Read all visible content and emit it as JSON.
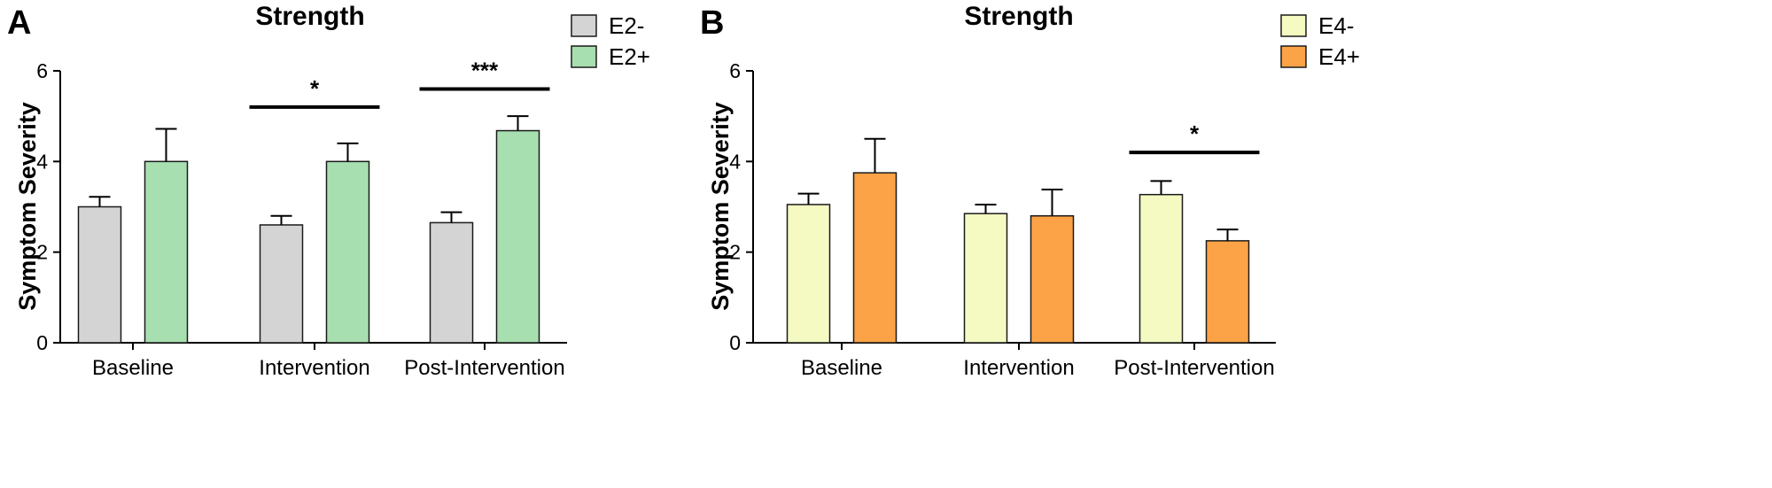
{
  "chart_data": [
    {
      "type": "bar",
      "panel_label": "A",
      "title": "Strength",
      "xlabel": "",
      "ylabel": "Symptom Severity",
      "ylim": [
        0,
        6
      ],
      "yticks": [
        "0",
        "2",
        "4",
        "6"
      ],
      "categories": [
        "Baseline",
        "Intervention",
        "Post-Intervention"
      ],
      "series": [
        {
          "name": "E2-",
          "color": "#d4d4d4",
          "values": [
            3.0,
            2.6,
            2.65
          ],
          "errors": [
            0.22,
            0.2,
            0.23
          ]
        },
        {
          "name": "E2+",
          "color": "#a8dfb0",
          "values": [
            4.0,
            4.0,
            4.68
          ],
          "errors": [
            0.72,
            0.4,
            0.32
          ]
        }
      ],
      "legend_position": "top-right",
      "significance": [
        {
          "category": "Intervention",
          "label": "*",
          "y": 5.2
        },
        {
          "category": "Post-Intervention",
          "label": "***",
          "y": 5.6
        }
      ]
    },
    {
      "type": "bar",
      "panel_label": "B",
      "title": "Strength",
      "xlabel": "",
      "ylabel": "Symptom Severity",
      "ylim": [
        0,
        6
      ],
      "yticks": [
        "0",
        "2",
        "4",
        "6"
      ],
      "categories": [
        "Baseline",
        "Intervention",
        "Post-Intervention"
      ],
      "series": [
        {
          "name": "E4-",
          "color": "#f4fac2",
          "values": [
            3.05,
            2.85,
            3.27
          ],
          "errors": [
            0.24,
            0.2,
            0.3
          ]
        },
        {
          "name": "E4+",
          "color": "#fba346",
          "values": [
            3.75,
            2.8,
            2.25
          ],
          "errors": [
            0.75,
            0.58,
            0.25
          ]
        }
      ],
      "legend_position": "top-right",
      "significance": [
        {
          "category": "Post-Intervention",
          "label": "*",
          "y": 4.2
        }
      ]
    }
  ]
}
